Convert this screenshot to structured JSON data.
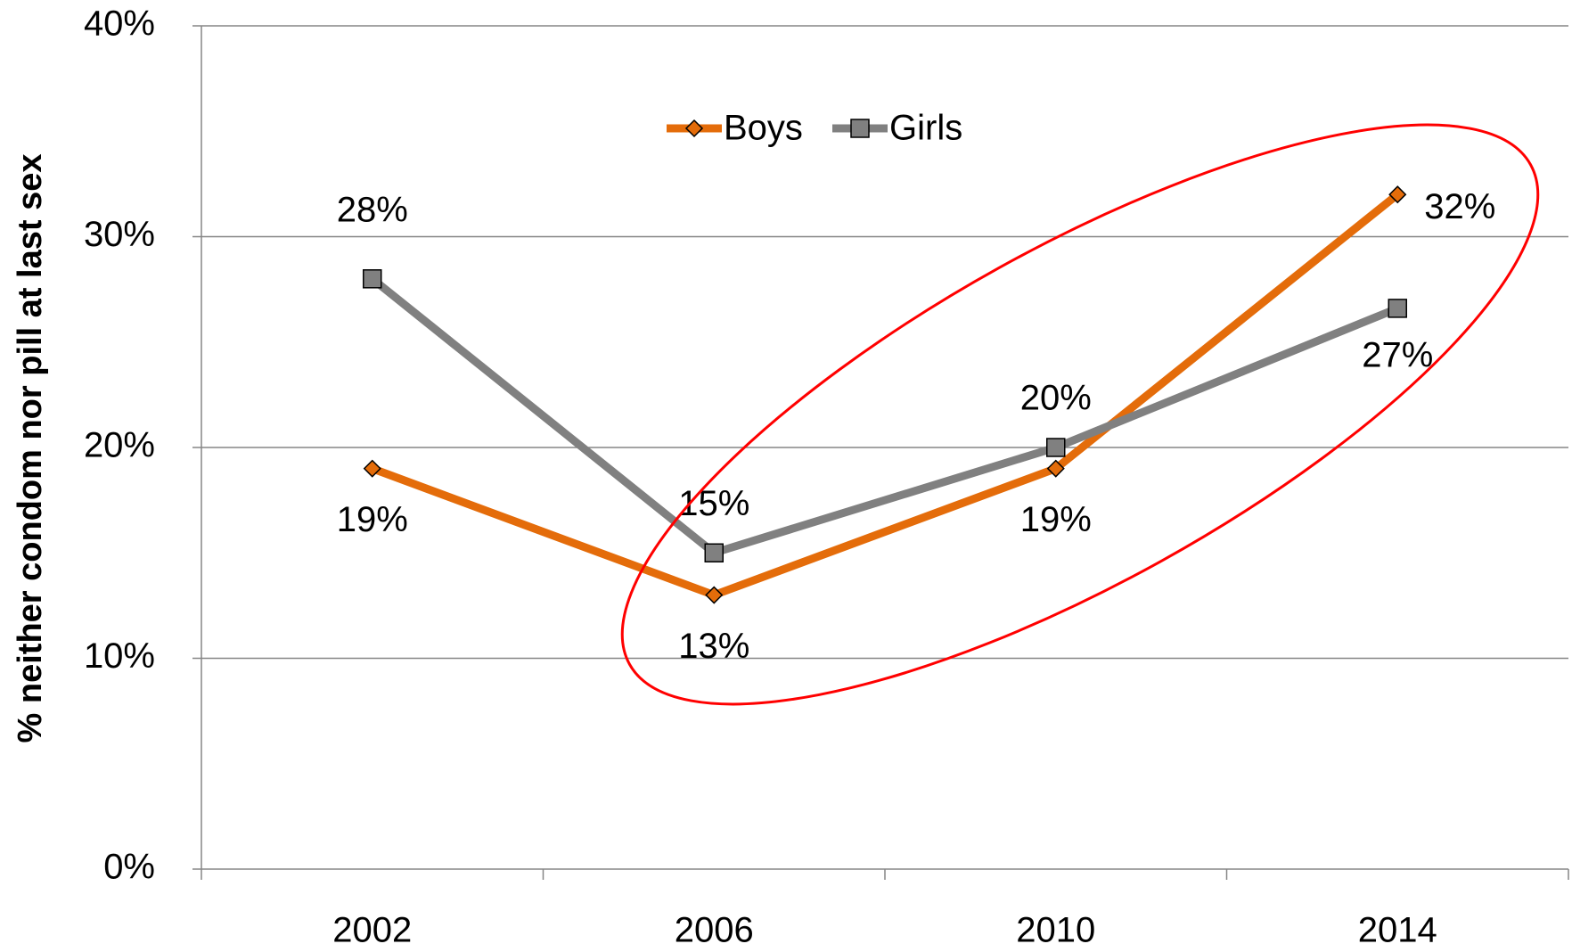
{
  "chart_data": {
    "type": "line",
    "y_label": "% neither condom nor pill at last sex",
    "categories": [
      "2002",
      "2006",
      "2010",
      "2014"
    ],
    "series": [
      {
        "name": "Boys",
        "color": "#e46c0a",
        "marker": "diamond",
        "values": [
          19,
          13,
          19,
          32
        ],
        "value_labels": [
          "19%",
          "13%",
          "19%",
          "32%"
        ]
      },
      {
        "name": "Girls",
        "color": "#808080",
        "marker": "square",
        "values": [
          28,
          15,
          20,
          26.6
        ],
        "value_labels": [
          "28%",
          "15%",
          "20%",
          "27%"
        ]
      }
    ],
    "ylim": [
      0,
      40
    ],
    "yticks": [
      {
        "value": 0,
        "label": "0%"
      },
      {
        "value": 10,
        "label": "10%"
      },
      {
        "value": 20,
        "label": "20%"
      },
      {
        "value": 30,
        "label": "30%"
      },
      {
        "value": 40,
        "label": "40%"
      }
    ],
    "grid": true,
    "legend": "top"
  }
}
